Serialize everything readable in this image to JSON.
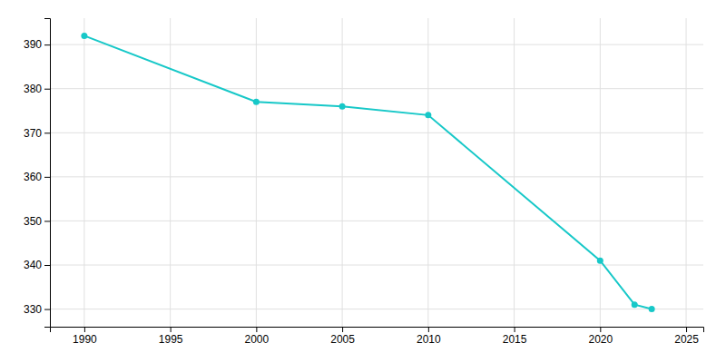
{
  "chart_data": {
    "type": "line",
    "x": [
      1990,
      2000,
      2005,
      2010,
      2020,
      2022,
      2023
    ],
    "values": [
      392,
      377,
      376,
      374,
      341,
      331,
      330
    ],
    "color": "#17c8c8",
    "marker": "circle",
    "xlim": [
      1988,
      2026
    ],
    "ylim": [
      326,
      396
    ],
    "xticks": [
      1990,
      1995,
      2000,
      2005,
      2010,
      2015,
      2020,
      2025
    ],
    "yticks": [
      330,
      340,
      350,
      360,
      370,
      380,
      390
    ],
    "grid": true
  }
}
